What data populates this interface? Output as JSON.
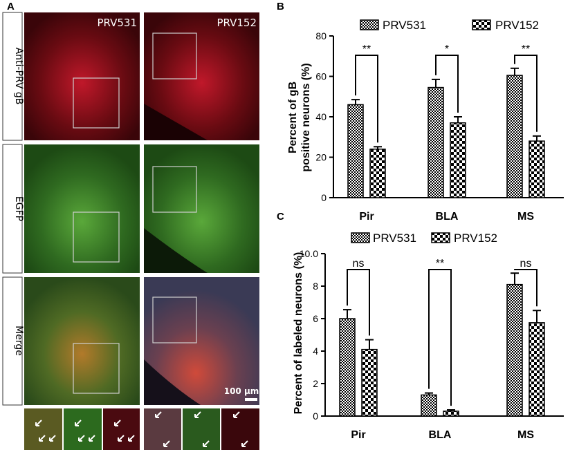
{
  "panel_a": {
    "panel_label": "A",
    "columns": [
      "PRV531",
      "PRV152"
    ],
    "rows": [
      "Anti-PRV gB",
      "EGFP",
      "Merge"
    ],
    "scale_bar": "100 μm"
  },
  "chart_data": [
    {
      "panel_label": "B",
      "type": "bar",
      "categories": [
        "Pir",
        "BLA",
        "MS"
      ],
      "series": [
        {
          "name": "PRV531",
          "values": [
            46,
            54.5,
            60.5
          ],
          "errors": [
            2.5,
            4,
            3.5
          ],
          "pattern": "checker-fine"
        },
        {
          "name": "PRV152",
          "values": [
            24,
            37,
            28
          ],
          "errors": [
            1.2,
            3,
            2.5
          ],
          "pattern": "checker-coarse"
        }
      ],
      "ylabel_line1": "Percent of gB",
      "ylabel_line2": "positive neurons (%)",
      "ylim": [
        0,
        80
      ],
      "yticks": [
        "0",
        "20",
        "40",
        "60",
        "80"
      ],
      "significance": [
        "**",
        "*",
        "**"
      ],
      "legend_position": "top"
    },
    {
      "panel_label": "C",
      "type": "bar",
      "categories": [
        "Pir",
        "BLA",
        "MS"
      ],
      "series": [
        {
          "name": "PRV531",
          "values": [
            6.0,
            1.3,
            8.1
          ],
          "errors": [
            0.55,
            0.12,
            0.7
          ],
          "pattern": "checker-fine"
        },
        {
          "name": "PRV152",
          "values": [
            4.1,
            0.3,
            5.75
          ],
          "errors": [
            0.6,
            0.08,
            0.75
          ],
          "pattern": "checker-coarse"
        }
      ],
      "ylabel": "Percent of labeled neurons (%)",
      "ylim": [
        0,
        10
      ],
      "yticks": [
        "0",
        "2",
        "4",
        "6",
        "8",
        "10.0"
      ],
      "significance": [
        "ns",
        "**",
        "ns"
      ],
      "legend_position": "top"
    }
  ]
}
